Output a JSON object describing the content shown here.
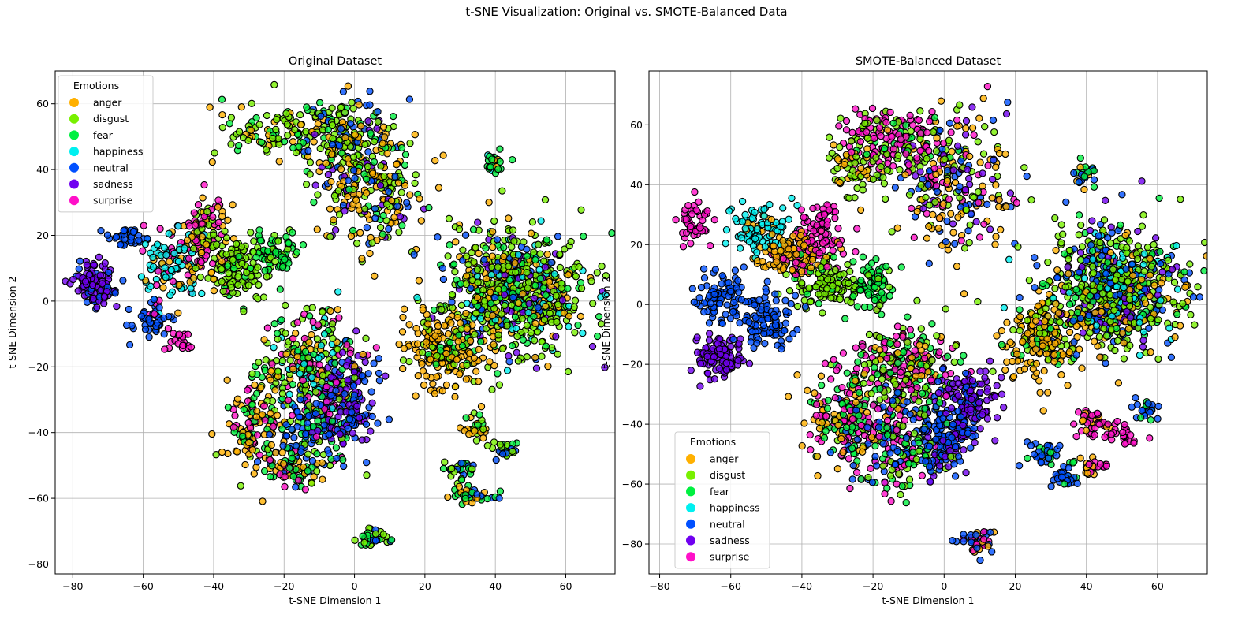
{
  "suptitle": "t-SNE Visualization: Original vs. SMOTE-Balanced Data",
  "colors": {
    "anger": "#ffb000",
    "disgust": "#78f000",
    "fear": "#00f040",
    "happiness": "#00f0f0",
    "neutral": "#0050ff",
    "sadness": "#7000f0",
    "surprise": "#ff10c8"
  },
  "chart_data": [
    {
      "type": "scatter",
      "title": "Original Dataset",
      "xlabel": "t-SNE Dimension 1",
      "ylabel": "t-SNE Dimension 2",
      "xlim": [
        -85,
        74
      ],
      "ylim": [
        -83,
        70
      ],
      "xticks": [
        -80,
        -60,
        -40,
        -20,
        0,
        20,
        40,
        60
      ],
      "yticks": [
        -80,
        -60,
        -40,
        -20,
        0,
        20,
        40,
        60
      ],
      "grid": true,
      "legend": {
        "title": "Emotions",
        "position": "top-left",
        "entries": [
          "anger",
          "disgust",
          "fear",
          "happiness",
          "neutral",
          "sadness",
          "surprise"
        ]
      },
      "clusters": [
        {
          "x": -74,
          "y": 5,
          "sx": 3.5,
          "sy": 4,
          "n": 120,
          "mix": {
            "sadness": 0.8,
            "neutral": 0.2
          }
        },
        {
          "x": -64,
          "y": 19,
          "sx": 3,
          "sy": 2,
          "n": 35,
          "mix": {
            "neutral": 1
          }
        },
        {
          "x": -58,
          "y": -6,
          "sx": 3.5,
          "sy": 3,
          "n": 45,
          "mix": {
            "neutral": 0.9,
            "surprise": 0.1
          }
        },
        {
          "x": -50,
          "y": -12,
          "sx": 2,
          "sy": 2,
          "n": 20,
          "mix": {
            "surprise": 1
          }
        },
        {
          "x": -52,
          "y": 10,
          "sx": 5,
          "sy": 7,
          "n": 110,
          "mix": {
            "happiness": 0.6,
            "anger": 0.2,
            "surprise": 0.2
          }
        },
        {
          "x": -42,
          "y": 18,
          "sx": 4,
          "sy": 8,
          "n": 120,
          "mix": {
            "anger": 0.45,
            "surprise": 0.35,
            "disgust": 0.2
          }
        },
        {
          "x": -33,
          "y": 10,
          "sx": 5,
          "sy": 6,
          "n": 110,
          "mix": {
            "disgust": 0.85,
            "fear": 0.15
          }
        },
        {
          "x": -22,
          "y": 15,
          "sx": 4,
          "sy": 4,
          "n": 70,
          "mix": {
            "fear": 0.8,
            "disgust": 0.2
          }
        },
        {
          "x": -20,
          "y": 52,
          "sx": 10,
          "sy": 5,
          "n": 120,
          "mix": {
            "disgust": 0.5,
            "anger": 0.3,
            "fear": 0.2
          }
        },
        {
          "x": -3,
          "y": 50,
          "sx": 6,
          "sy": 8,
          "n": 120,
          "mix": {
            "disgust": 0.35,
            "neutral": 0.3,
            "fear": 0.2,
            "anger": 0.15
          }
        },
        {
          "x": 5,
          "y": 35,
          "sx": 9,
          "sy": 12,
          "n": 260,
          "mix": {
            "anger": 0.35,
            "disgust": 0.3,
            "sadness": 0.15,
            "neutral": 0.1,
            "fear": 0.1
          }
        },
        {
          "x": 40,
          "y": 42,
          "sx": 2.5,
          "sy": 2.5,
          "n": 25,
          "mix": {
            "fear": 0.5,
            "happiness": 0.3,
            "anger": 0.2
          }
        },
        {
          "x": 45,
          "y": 3,
          "sx": 12,
          "sy": 11,
          "n": 700,
          "mix": {
            "disgust": 0.4,
            "anger": 0.2,
            "fear": 0.15,
            "neutral": 0.1,
            "sadness": 0.08,
            "happiness": 0.07
          }
        },
        {
          "x": 25,
          "y": -15,
          "sx": 7,
          "sy": 7,
          "n": 200,
          "mix": {
            "anger": 0.7,
            "disgust": 0.2,
            "fear": 0.1
          }
        },
        {
          "x": -28,
          "y": -38,
          "sx": 5,
          "sy": 10,
          "n": 140,
          "mix": {
            "anger": 0.5,
            "fear": 0.2,
            "surprise": 0.15,
            "disgust": 0.15
          }
        },
        {
          "x": -12,
          "y": -20,
          "sx": 8,
          "sy": 10,
          "n": 230,
          "mix": {
            "disgust": 0.35,
            "fear": 0.2,
            "happiness": 0.15,
            "anger": 0.15,
            "surprise": 0.15
          }
        },
        {
          "x": -12,
          "y": -40,
          "sx": 7,
          "sy": 9,
          "n": 170,
          "mix": {
            "neutral": 0.5,
            "fear": 0.25,
            "disgust": 0.15,
            "surprise": 0.1
          }
        },
        {
          "x": -18,
          "y": -52,
          "sx": 4,
          "sy": 3,
          "n": 50,
          "mix": {
            "fear": 0.4,
            "surprise": 0.3,
            "anger": 0.3
          }
        },
        {
          "x": -2,
          "y": -30,
          "sx": 5,
          "sy": 9,
          "n": 150,
          "mix": {
            "sadness": 0.55,
            "neutral": 0.45
          }
        },
        {
          "x": 34,
          "y": -38,
          "sx": 2,
          "sy": 3,
          "n": 30,
          "mix": {
            "anger": 0.5,
            "disgust": 0.3,
            "fear": 0.2
          }
        },
        {
          "x": 30,
          "y": -51,
          "sx": 2.5,
          "sy": 2,
          "n": 30,
          "mix": {
            "disgust": 0.5,
            "fear": 0.3,
            "neutral": 0.2
          }
        },
        {
          "x": 33,
          "y": -59,
          "sx": 4,
          "sy": 1.5,
          "n": 40,
          "mix": {
            "fear": 0.5,
            "anger": 0.3,
            "neutral": 0.2
          }
        },
        {
          "x": 42,
          "y": -45,
          "sx": 3,
          "sy": 1.5,
          "n": 25,
          "mix": {
            "disgust": 0.4,
            "neutral": 0.4,
            "fear": 0.2
          }
        },
        {
          "x": 6,
          "y": -72,
          "sx": 2.5,
          "sy": 1.5,
          "n": 35,
          "mix": {
            "disgust": 0.4,
            "neutral": 0.3,
            "fear": 0.3
          }
        }
      ]
    },
    {
      "type": "scatter",
      "title": "SMOTE-Balanced Dataset",
      "xlabel": "t-SNE Dimension 1",
      "ylabel": "t-SNE Dimension 2",
      "xlim": [
        -83,
        74
      ],
      "ylim": [
        -90,
        78
      ],
      "xticks": [
        -80,
        -60,
        -40,
        -20,
        0,
        20,
        40,
        60
      ],
      "yticks": [
        -80,
        -60,
        -40,
        -20,
        0,
        20,
        40,
        60
      ],
      "grid": true,
      "legend": {
        "title": "Emotions",
        "position": "bottom-left",
        "entries": [
          "anger",
          "disgust",
          "fear",
          "happiness",
          "neutral",
          "sadness",
          "surprise"
        ]
      },
      "clusters": [
        {
          "x": -70,
          "y": 27,
          "sx": 3,
          "sy": 4,
          "n": 50,
          "mix": {
            "surprise": 1
          }
        },
        {
          "x": -52,
          "y": 25,
          "sx": 5,
          "sy": 5,
          "n": 90,
          "mix": {
            "happiness": 0.85,
            "anger": 0.15
          }
        },
        {
          "x": -62,
          "y": 3,
          "sx": 5,
          "sy": 5,
          "n": 90,
          "mix": {
            "neutral": 1
          }
        },
        {
          "x": -50,
          "y": -6,
          "sx": 5,
          "sy": 6,
          "n": 90,
          "mix": {
            "neutral": 1
          }
        },
        {
          "x": -63,
          "y": -17,
          "sx": 4,
          "sy": 4,
          "n": 110,
          "mix": {
            "sadness": 1
          }
        },
        {
          "x": -42,
          "y": 18,
          "sx": 6,
          "sy": 5,
          "n": 120,
          "mix": {
            "anger": 0.7,
            "surprise": 0.3
          }
        },
        {
          "x": -35,
          "y": 25,
          "sx": 4,
          "sy": 6,
          "n": 80,
          "mix": {
            "surprise": 1
          }
        },
        {
          "x": -33,
          "y": 8,
          "sx": 6,
          "sy": 5,
          "n": 120,
          "mix": {
            "disgust": 0.85,
            "fear": 0.15
          }
        },
        {
          "x": -20,
          "y": 7,
          "sx": 4,
          "sy": 4,
          "n": 80,
          "mix": {
            "fear": 0.85,
            "disgust": 0.15
          }
        },
        {
          "x": -15,
          "y": 55,
          "sx": 9,
          "sy": 6,
          "n": 180,
          "mix": {
            "surprise": 0.55,
            "disgust": 0.3,
            "fear": 0.15
          }
        },
        {
          "x": 2,
          "y": 40,
          "sx": 9,
          "sy": 14,
          "n": 260,
          "mix": {
            "anger": 0.3,
            "surprise": 0.2,
            "disgust": 0.2,
            "neutral": 0.15,
            "sadness": 0.15
          }
        },
        {
          "x": -25,
          "y": 45,
          "sx": 5,
          "sy": 5,
          "n": 60,
          "mix": {
            "disgust": 0.6,
            "anger": 0.4
          }
        },
        {
          "x": 40,
          "y": 44,
          "sx": 2.5,
          "sy": 2.5,
          "n": 25,
          "mix": {
            "fear": 0.6,
            "neutral": 0.2,
            "anger": 0.2
          }
        },
        {
          "x": 48,
          "y": 5,
          "sx": 12,
          "sy": 12,
          "n": 720,
          "mix": {
            "disgust": 0.35,
            "fear": 0.15,
            "neutral": 0.15,
            "anger": 0.15,
            "sadness": 0.1,
            "happiness": 0.1
          }
        },
        {
          "x": 27,
          "y": -12,
          "sx": 7,
          "sy": 7,
          "n": 190,
          "mix": {
            "anger": 0.7,
            "disgust": 0.2,
            "fear": 0.1
          }
        },
        {
          "x": -28,
          "y": -38,
          "sx": 6,
          "sy": 9,
          "n": 170,
          "mix": {
            "anger": 0.4,
            "surprise": 0.3,
            "fear": 0.3
          }
        },
        {
          "x": -12,
          "y": -22,
          "sx": 9,
          "sy": 9,
          "n": 260,
          "mix": {
            "surprise": 0.4,
            "disgust": 0.25,
            "fear": 0.2,
            "anger": 0.15
          }
        },
        {
          "x": -12,
          "y": -45,
          "sx": 8,
          "sy": 9,
          "n": 220,
          "mix": {
            "surprise": 0.35,
            "neutral": 0.3,
            "fear": 0.2,
            "disgust": 0.15
          }
        },
        {
          "x": 0,
          "y": -45,
          "sx": 5,
          "sy": 9,
          "n": 170,
          "mix": {
            "neutral": 0.7,
            "sadness": 0.3
          }
        },
        {
          "x": 8,
          "y": -33,
          "sx": 4,
          "sy": 6,
          "n": 110,
          "mix": {
            "sadness": 0.8,
            "neutral": 0.2
          }
        },
        {
          "x": 42,
          "y": -40,
          "sx": 3,
          "sy": 3,
          "n": 40,
          "mix": {
            "surprise": 0.7,
            "anger": 0.3
          }
        },
        {
          "x": 50,
          "y": -44,
          "sx": 2.5,
          "sy": 2.5,
          "n": 25,
          "mix": {
            "surprise": 1
          }
        },
        {
          "x": 57,
          "y": -35,
          "sx": 2.5,
          "sy": 2,
          "n": 25,
          "mix": {
            "neutral": 0.6,
            "fear": 0.4
          }
        },
        {
          "x": 29,
          "y": -50,
          "sx": 3,
          "sy": 2.5,
          "n": 35,
          "mix": {
            "neutral": 0.8,
            "fear": 0.2
          }
        },
        {
          "x": 34,
          "y": -58,
          "sx": 2.5,
          "sy": 2,
          "n": 30,
          "mix": {
            "neutral": 0.7,
            "fear": 0.3
          }
        },
        {
          "x": 42,
          "y": -54,
          "sx": 2.5,
          "sy": 2,
          "n": 25,
          "mix": {
            "surprise": 0.6,
            "anger": 0.4
          }
        },
        {
          "x": 9,
          "y": -79,
          "sx": 3,
          "sy": 2,
          "n": 45,
          "mix": {
            "neutral": 0.5,
            "surprise": 0.25,
            "anger": 0.25
          }
        }
      ]
    }
  ]
}
